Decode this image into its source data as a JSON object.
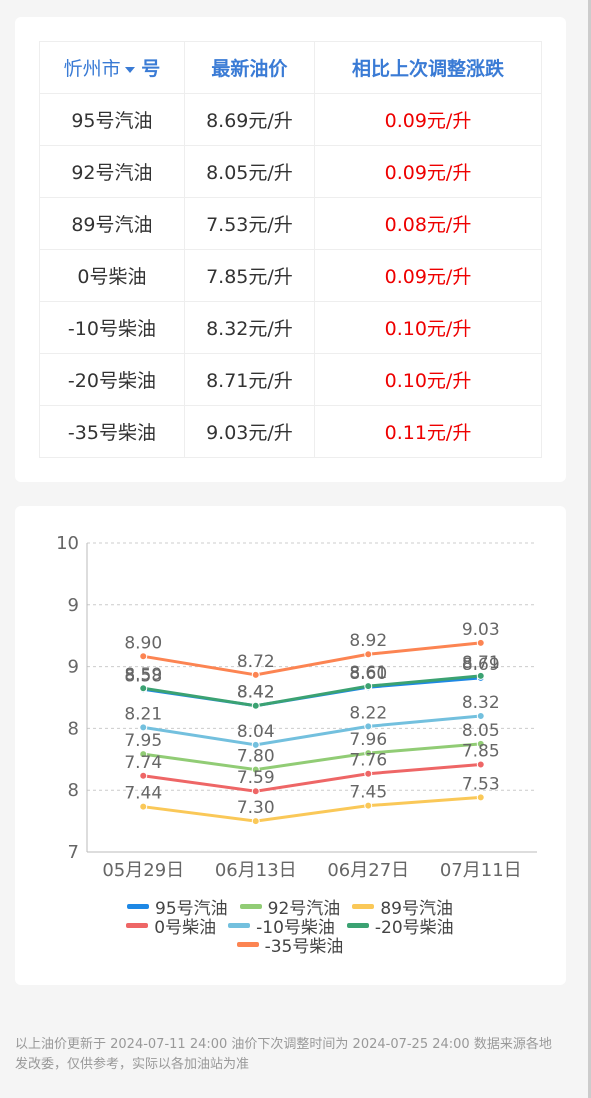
{
  "table": {
    "city": "忻州市",
    "header": [
      "号",
      "最新油价",
      "相比上次调整涨跌"
    ],
    "rows": [
      [
        "95号汽油",
        "8.69元/升",
        "0.09元/升"
      ],
      [
        "92号汽油",
        "8.05元/升",
        "0.09元/升"
      ],
      [
        "89号汽油",
        "7.53元/升",
        "0.08元/升"
      ],
      [
        "0号柴油",
        "7.85元/升",
        "0.09元/升"
      ],
      [
        "-10号柴油",
        "8.32元/升",
        "0.10元/升"
      ],
      [
        "-20号柴油",
        "8.71元/升",
        "0.10元/升"
      ],
      [
        "-35号柴油",
        "9.03元/升",
        "0.11元/升"
      ]
    ]
  },
  "chart_data": {
    "type": "line",
    "categories": [
      "05月29日",
      "06月13日",
      "06月27日",
      "07月11日"
    ],
    "ylim": [
      7,
      10
    ],
    "yticks": [
      7,
      {
        "value": 7.6,
        "label": "8"
      },
      {
        "value": 8.2,
        "label": "8"
      },
      {
        "value": 8.8,
        "label": "9"
      },
      {
        "value": 9.4,
        "label": "9"
      },
      10
    ],
    "grid": true,
    "series": [
      {
        "name": "95号汽油",
        "color": "#1e88e5",
        "values": [
          8.58,
          8.42,
          8.6,
          8.69
        ],
        "value_labels": [
          "8.58",
          "8.42",
          "8.60",
          "8.69"
        ]
      },
      {
        "name": "92号汽油",
        "color": "#91cc75",
        "values": [
          7.95,
          7.8,
          7.96,
          8.05
        ],
        "value_labels": [
          "7.95",
          "7.80",
          "7.96",
          "8.05"
        ]
      },
      {
        "name": "89号汽油",
        "color": "#fac858",
        "values": [
          7.44,
          7.3,
          7.45,
          7.53
        ],
        "value_labels": [
          "7.44",
          "7.30",
          "7.45",
          "7.53"
        ]
      },
      {
        "name": "0号柴油",
        "color": "#ee6666",
        "values": [
          7.74,
          7.59,
          7.76,
          7.85
        ],
        "value_labels": [
          "7.74",
          "7.59",
          "7.76",
          "7.85"
        ]
      },
      {
        "name": "-10号柴油",
        "color": "#73c0de",
        "values": [
          8.21,
          8.04,
          8.22,
          8.32
        ],
        "value_labels": [
          "8.21",
          "8.04",
          "8.22",
          "8.32"
        ]
      },
      {
        "name": "-20号柴油",
        "color": "#3ba272",
        "values": [
          8.59,
          8.42,
          8.61,
          8.71
        ],
        "value_labels": [
          "8.59",
          "8.42",
          "8.61",
          "8.71"
        ]
      },
      {
        "name": "-35号柴油",
        "color": "#fc8452",
        "values": [
          8.9,
          8.72,
          8.92,
          9.03
        ],
        "value_labels": [
          "8.90",
          "8.72",
          "8.92",
          "9.03"
        ]
      }
    ]
  },
  "footer": "以上油价更新于 2024-07-11 24:00 油价下次调整时间为 2024-07-25 24:00 数据来源各地发改委，仅供参考，实际以各加油站为准"
}
